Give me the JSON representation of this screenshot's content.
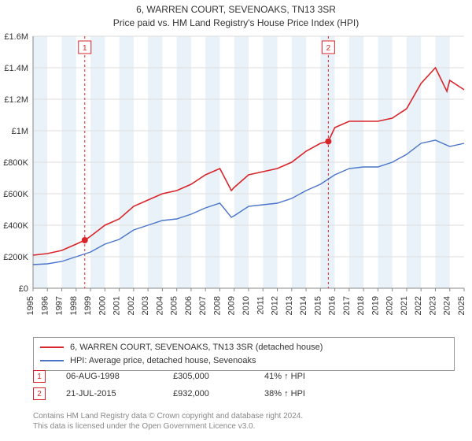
{
  "title_line1": "6, WARREN COURT, SEVENOAKS, TN13 3SR",
  "title_line2": "Price paid vs. HM Land Registry's House Price Index (HPI)",
  "chart": {
    "type": "line",
    "background_color": "#ffffff",
    "plot_bg_band_color": "#eaf2f9",
    "grid_color": "#dddddd",
    "axis_color": "#888888",
    "ylim": [
      0,
      1600000
    ],
    "ytick_step": 200000,
    "yticks_labels": [
      "£0",
      "£200K",
      "£400K",
      "£600K",
      "£800K",
      "£1M",
      "£1.2M",
      "£1.4M",
      "£1.6M"
    ],
    "x_start_year": 1995,
    "x_end_year": 2025,
    "xticks_years": [
      1995,
      1996,
      1997,
      1998,
      1999,
      2000,
      2001,
      2002,
      2003,
      2004,
      2005,
      2006,
      2007,
      2008,
      2009,
      2010,
      2011,
      2012,
      2013,
      2014,
      2015,
      2016,
      2017,
      2018,
      2019,
      2020,
      2021,
      2022,
      2023,
      2024,
      2025
    ],
    "series": [
      {
        "name": "price_paid",
        "label": "6, WARREN COURT, SEVENOAKS, TN13 3SR (detached house)",
        "color": "#d9252a",
        "line_width": 1.6,
        "x": [
          1995,
          1996,
          1997,
          1998,
          1998.6,
          1999,
          2000,
          2001,
          2002,
          2003,
          2004,
          2005,
          2006,
          2007,
          2008,
          2008.8,
          2009,
          2010,
          2011,
          2012,
          2013,
          2014,
          2015,
          2015.55,
          2016,
          2017,
          2018,
          2019,
          2020,
          2021,
          2022,
          2023,
          2023.8,
          2024,
          2025
        ],
        "y": [
          210000,
          220000,
          240000,
          280000,
          305000,
          330000,
          400000,
          440000,
          520000,
          560000,
          600000,
          620000,
          660000,
          720000,
          760000,
          620000,
          640000,
          720000,
          740000,
          760000,
          800000,
          870000,
          920000,
          932000,
          1020000,
          1060000,
          1060000,
          1060000,
          1080000,
          1140000,
          1300000,
          1400000,
          1250000,
          1320000,
          1260000
        ]
      },
      {
        "name": "hpi",
        "label": "HPI: Average price, detached house, Sevenoaks",
        "color": "#4a74c9",
        "line_width": 1.4,
        "x": [
          1995,
          1996,
          1997,
          1998,
          1999,
          2000,
          2001,
          2002,
          2003,
          2004,
          2005,
          2006,
          2007,
          2008,
          2008.8,
          2009,
          2010,
          2011,
          2012,
          2013,
          2014,
          2015,
          2016,
          2017,
          2018,
          2019,
          2020,
          2021,
          2022,
          2023,
          2024,
          2025
        ],
        "y": [
          150000,
          155000,
          170000,
          200000,
          230000,
          280000,
          310000,
          370000,
          400000,
          430000,
          440000,
          470000,
          510000,
          540000,
          450000,
          460000,
          520000,
          530000,
          540000,
          570000,
          620000,
          660000,
          720000,
          760000,
          770000,
          770000,
          800000,
          850000,
          920000,
          940000,
          900000,
          920000
        ]
      }
    ],
    "sale_markers": [
      {
        "id": "1",
        "year": 1998.6,
        "value": 305000,
        "color": "#d9252a"
      },
      {
        "id": "2",
        "year": 2015.55,
        "value": 932000,
        "color": "#d9252a"
      }
    ],
    "label_fontsize": 11,
    "title_fontsize": 12
  },
  "legend": {
    "items": [
      {
        "color": "#d9252a",
        "label": "6, WARREN COURT, SEVENOAKS, TN13 3SR (detached house)"
      },
      {
        "color": "#4a74c9",
        "label": "HPI: Average price, detached house, Sevenoaks"
      }
    ]
  },
  "marker_rows": [
    {
      "badge": "1",
      "badge_color": "#d9252a",
      "date": "06-AUG-1998",
      "price": "£305,000",
      "hpi": "41% ↑ HPI"
    },
    {
      "badge": "2",
      "badge_color": "#d9252a",
      "date": "21-JUL-2015",
      "price": "£932,000",
      "hpi": "38% ↑ HPI"
    }
  ],
  "footnote_line1": "Contains HM Land Registry data © Crown copyright and database right 2024.",
  "footnote_line2": "This data is licensed under the Open Government Licence v3.0."
}
